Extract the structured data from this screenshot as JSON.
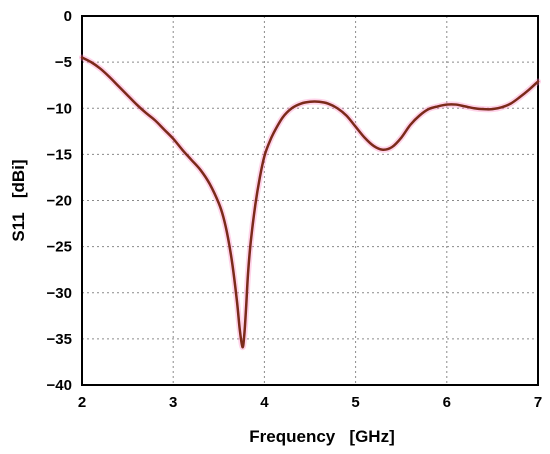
{
  "chart_data": {
    "type": "line",
    "xlabel": "Frequency   [GHz]",
    "ylabel": "S11   [dBi]",
    "xlim": [
      2,
      7
    ],
    "ylim": [
      -40,
      0
    ],
    "x_ticks": [
      2,
      3,
      4,
      5,
      6,
      7
    ],
    "x_tick_labels": [
      "2",
      "3",
      "4",
      "5",
      "6",
      "7"
    ],
    "y_ticks": [
      0,
      -5,
      -10,
      -15,
      -20,
      -25,
      -30,
      -35,
      -40
    ],
    "y_tick_labels": [
      "0",
      "−5",
      "−10",
      "−15",
      "−20",
      "−25",
      "−30",
      "−35",
      "−40"
    ],
    "grid": true,
    "legend": "none",
    "series": [
      {
        "color": "#7B2A1A",
        "x": [
          2.0,
          2.1,
          2.2,
          2.3,
          2.4,
          2.5,
          2.6,
          2.7,
          2.8,
          2.9,
          3.0,
          3.1,
          3.2,
          3.3,
          3.4,
          3.5,
          3.55,
          3.6,
          3.65,
          3.7,
          3.73,
          3.76,
          3.78,
          3.8,
          3.82,
          3.85,
          3.9,
          3.95,
          4.0,
          4.05,
          4.1,
          4.2,
          4.3,
          4.4,
          4.5,
          4.6,
          4.7,
          4.8,
          4.9,
          5.0,
          5.1,
          5.2,
          5.3,
          5.4,
          5.5,
          5.6,
          5.7,
          5.8,
          5.9,
          6.0,
          6.1,
          6.2,
          6.3,
          6.4,
          6.5,
          6.6,
          6.7,
          6.8,
          6.9,
          7.0
        ],
        "y": [
          -4.5,
          -5.0,
          -5.7,
          -6.6,
          -7.6,
          -8.6,
          -9.6,
          -10.5,
          -11.3,
          -12.3,
          -13.3,
          -14.5,
          -15.6,
          -16.7,
          -18.2,
          -20.3,
          -21.8,
          -24.0,
          -27.0,
          -31.0,
          -34.0,
          -35.9,
          -34.5,
          -31.5,
          -28.0,
          -24.5,
          -20.5,
          -17.5,
          -15.2,
          -13.8,
          -12.7,
          -11.0,
          -10.0,
          -9.5,
          -9.3,
          -9.3,
          -9.5,
          -10.0,
          -10.8,
          -12.0,
          -13.2,
          -14.1,
          -14.5,
          -14.2,
          -13.2,
          -11.8,
          -10.8,
          -10.1,
          -9.8,
          -9.6,
          -9.6,
          -9.8,
          -10.0,
          -10.1,
          -10.1,
          -9.9,
          -9.5,
          -8.8,
          -8.0,
          -7.1
        ]
      }
    ]
  }
}
